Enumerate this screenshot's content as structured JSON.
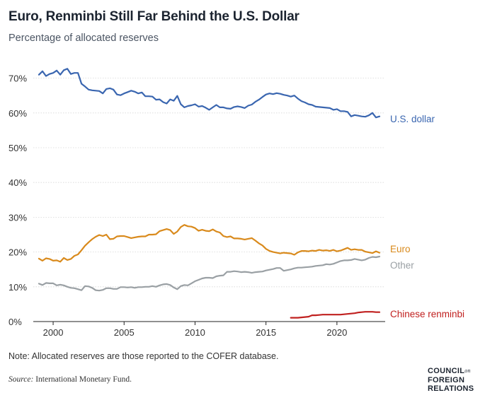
{
  "chart_data": {
    "type": "line",
    "title": "Euro, Renminbi Still Far Behind the U.S. Dollar",
    "subtitle": "Percentage of allocated reserves",
    "ylim": [
      0,
      75
    ],
    "xlim": [
      1998.6,
      2023.4
    ],
    "y_ticks": [
      0,
      10,
      20,
      30,
      40,
      50,
      60,
      70
    ],
    "y_tick_labels": [
      "0%",
      "10%",
      "20%",
      "30%",
      "40%",
      "50%",
      "60%",
      "70%"
    ],
    "x_ticks": [
      2000,
      2005,
      2010,
      2015,
      2020
    ],
    "x_tick_labels": [
      "2000",
      "2005",
      "2010",
      "2015",
      "2020"
    ],
    "grid": "horizontal",
    "legend": "direct labels at right end of lines",
    "series": [
      {
        "name": "U.S. dollar",
        "color": "#3a66b0",
        "x": [
          1999,
          1999.25,
          1999.5,
          1999.75,
          2000,
          2000.25,
          2000.5,
          2000.75,
          2001,
          2001.25,
          2001.5,
          2001.75,
          2002,
          2002.25,
          2002.5,
          2002.75,
          2003,
          2003.25,
          2003.5,
          2003.75,
          2004,
          2004.25,
          2004.5,
          2004.75,
          2005,
          2005.25,
          2005.5,
          2005.75,
          2006,
          2006.25,
          2006.5,
          2006.75,
          2007,
          2007.25,
          2007.5,
          2007.75,
          2008,
          2008.25,
          2008.5,
          2008.75,
          2009,
          2009.25,
          2009.5,
          2009.75,
          2010,
          2010.25,
          2010.5,
          2010.75,
          2011,
          2011.25,
          2011.5,
          2011.75,
          2012,
          2012.25,
          2012.5,
          2012.75,
          2013,
          2013.25,
          2013.5,
          2013.75,
          2014,
          2014.25,
          2014.5,
          2014.75,
          2015,
          2015.25,
          2015.5,
          2015.75,
          2016,
          2016.25,
          2016.5,
          2016.75,
          2017,
          2017.25,
          2017.5,
          2017.75,
          2018,
          2018.25,
          2018.5,
          2018.75,
          2019,
          2019.25,
          2019.5,
          2019.75,
          2020,
          2020.25,
          2020.5,
          2020.75,
          2021,
          2021.25,
          2021.5,
          2021.75,
          2022,
          2022.25,
          2022.5,
          2022.75,
          2023
        ],
        "values": [
          71.0,
          72.0,
          70.6,
          71.2,
          71.5,
          72.2,
          71.0,
          72.3,
          72.7,
          71.2,
          71.5,
          71.5,
          68.4,
          67.6,
          66.7,
          66.5,
          66.4,
          66.3,
          65.6,
          66.9,
          67.1,
          66.7,
          65.3,
          65.1,
          65.6,
          66.0,
          66.4,
          66.1,
          65.6,
          65.9,
          64.8,
          64.8,
          64.7,
          63.8,
          63.9,
          63.1,
          62.7,
          63.9,
          63.5,
          64.9,
          62.5,
          61.6,
          62.0,
          62.2,
          62.5,
          61.8,
          62.0,
          61.5,
          60.9,
          61.6,
          62.3,
          61.6,
          61.6,
          61.3,
          61.2,
          61.7,
          61.9,
          61.7,
          61.4,
          62.1,
          62.4,
          63.2,
          63.8,
          64.6,
          65.3,
          65.6,
          65.4,
          65.7,
          65.5,
          65.2,
          65.0,
          64.7,
          65.0,
          64.1,
          63.4,
          63.0,
          62.5,
          62.3,
          61.8,
          61.7,
          61.6,
          61.5,
          61.4,
          60.9,
          61.1,
          60.5,
          60.5,
          60.3,
          59.0,
          59.4,
          59.2,
          59.0,
          58.9,
          59.3,
          60.0,
          58.7,
          59.0
        ]
      },
      {
        "name": "Euro",
        "color": "#d98a1c",
        "x": [
          1999,
          1999.25,
          1999.5,
          1999.75,
          2000,
          2000.25,
          2000.5,
          2000.75,
          2001,
          2001.25,
          2001.5,
          2001.75,
          2002,
          2002.25,
          2002.5,
          2002.75,
          2003,
          2003.25,
          2003.5,
          2003.75,
          2004,
          2004.25,
          2004.5,
          2004.75,
          2005,
          2005.25,
          2005.5,
          2005.75,
          2006,
          2006.25,
          2006.5,
          2006.75,
          2007,
          2007.25,
          2007.5,
          2007.75,
          2008,
          2008.25,
          2008.5,
          2008.75,
          2009,
          2009.25,
          2009.5,
          2009.75,
          2010,
          2010.25,
          2010.5,
          2010.75,
          2011,
          2011.25,
          2011.5,
          2011.75,
          2012,
          2012.25,
          2012.5,
          2012.75,
          2013,
          2013.25,
          2013.5,
          2013.75,
          2014,
          2014.25,
          2014.5,
          2014.75,
          2015,
          2015.25,
          2015.5,
          2015.75,
          2016,
          2016.25,
          2016.5,
          2016.75,
          2017,
          2017.25,
          2017.5,
          2017.75,
          2018,
          2018.25,
          2018.5,
          2018.75,
          2019,
          2019.25,
          2019.5,
          2019.75,
          2020,
          2020.25,
          2020.5,
          2020.75,
          2021,
          2021.25,
          2021.5,
          2021.75,
          2022,
          2022.25,
          2022.5,
          2022.75,
          2023
        ],
        "values": [
          18.1,
          17.5,
          18.2,
          18.0,
          17.5,
          17.6,
          17.2,
          18.3,
          17.7,
          18.0,
          18.9,
          19.3,
          20.5,
          21.8,
          22.8,
          23.7,
          24.4,
          24.9,
          24.6,
          25.0,
          23.7,
          23.8,
          24.5,
          24.6,
          24.6,
          24.3,
          24.0,
          24.2,
          24.4,
          24.5,
          24.5,
          25.0,
          25.0,
          25.1,
          26.0,
          26.3,
          26.6,
          26.3,
          25.2,
          25.9,
          27.2,
          27.8,
          27.4,
          27.3,
          26.9,
          26.1,
          26.4,
          26.1,
          26.0,
          26.5,
          25.9,
          25.6,
          24.6,
          24.3,
          24.5,
          23.9,
          23.9,
          23.8,
          23.6,
          23.8,
          24.0,
          23.3,
          22.5,
          21.9,
          20.9,
          20.3,
          20.0,
          19.8,
          19.6,
          19.8,
          19.7,
          19.6,
          19.2,
          19.9,
          20.3,
          20.3,
          20.2,
          20.4,
          20.3,
          20.6,
          20.4,
          20.5,
          20.3,
          20.6,
          20.2,
          20.4,
          20.8,
          21.2,
          20.6,
          20.8,
          20.6,
          20.6,
          20.1,
          19.9,
          19.7,
          20.2,
          19.8
        ]
      },
      {
        "name": "Other",
        "color": "#9aa0a4",
        "x": [
          1999,
          1999.25,
          1999.5,
          1999.75,
          2000,
          2000.25,
          2000.5,
          2000.75,
          2001,
          2001.25,
          2001.5,
          2001.75,
          2002,
          2002.25,
          2002.5,
          2002.75,
          2003,
          2003.25,
          2003.5,
          2003.75,
          2004,
          2004.25,
          2004.5,
          2004.75,
          2005,
          2005.25,
          2005.5,
          2005.75,
          2006,
          2006.25,
          2006.5,
          2006.75,
          2007,
          2007.25,
          2007.5,
          2007.75,
          2008,
          2008.25,
          2008.5,
          2008.75,
          2009,
          2009.25,
          2009.5,
          2009.75,
          2010,
          2010.25,
          2010.5,
          2010.75,
          2011,
          2011.25,
          2011.5,
          2011.75,
          2012,
          2012.25,
          2012.5,
          2012.75,
          2013,
          2013.25,
          2013.5,
          2013.75,
          2014,
          2014.25,
          2014.5,
          2014.75,
          2015,
          2015.25,
          2015.5,
          2015.75,
          2016,
          2016.25,
          2016.5,
          2016.75,
          2017,
          2017.25,
          2017.5,
          2017.75,
          2018,
          2018.25,
          2018.5,
          2018.75,
          2019,
          2019.25,
          2019.5,
          2019.75,
          2020,
          2020.25,
          2020.5,
          2020.75,
          2021,
          2021.25,
          2021.5,
          2021.75,
          2022,
          2022.25,
          2022.5,
          2022.75,
          2023
        ],
        "values": [
          10.9,
          10.5,
          11.1,
          11.0,
          11.0,
          10.4,
          10.6,
          10.4,
          10.0,
          9.7,
          9.6,
          9.3,
          9.0,
          10.2,
          10.1,
          9.7,
          9.0,
          8.9,
          9.1,
          9.6,
          9.6,
          9.4,
          9.4,
          9.9,
          9.9,
          9.8,
          9.9,
          9.7,
          9.9,
          9.9,
          10.0,
          10.0,
          10.2,
          10.0,
          10.4,
          10.7,
          10.8,
          10.5,
          9.8,
          9.3,
          10.2,
          10.5,
          10.4,
          11.0,
          11.6,
          12.0,
          12.4,
          12.6,
          12.6,
          12.5,
          13.0,
          13.2,
          13.3,
          14.3,
          14.3,
          14.5,
          14.4,
          14.2,
          14.3,
          14.2,
          14.0,
          14.2,
          14.3,
          14.4,
          14.7,
          14.9,
          15.1,
          15.4,
          15.4,
          14.6,
          14.8,
          15.0,
          15.3,
          15.5,
          15.5,
          15.6,
          15.7,
          15.8,
          16.0,
          16.1,
          16.2,
          16.5,
          16.4,
          16.6,
          17.0,
          17.4,
          17.6,
          17.6,
          17.7,
          18.0,
          17.8,
          17.6,
          17.8,
          18.3,
          18.6,
          18.5,
          18.7
        ]
      },
      {
        "name": "Chinese renminbi",
        "color": "#c0201f",
        "x": [
          2016.75,
          2017,
          2017.25,
          2017.5,
          2017.75,
          2018,
          2018.25,
          2018.5,
          2018.75,
          2019,
          2019.25,
          2019.5,
          2019.75,
          2020,
          2020.25,
          2020.5,
          2020.75,
          2021,
          2021.25,
          2021.5,
          2021.75,
          2022,
          2022.25,
          2022.5,
          2022.75,
          2023
        ],
        "values": [
          1.1,
          1.1,
          1.1,
          1.2,
          1.3,
          1.4,
          1.8,
          1.8,
          1.9,
          2.0,
          2.0,
          2.0,
          2.0,
          2.0,
          2.0,
          2.1,
          2.2,
          2.3,
          2.4,
          2.6,
          2.7,
          2.8,
          2.8,
          2.8,
          2.7,
          2.7
        ]
      }
    ]
  },
  "footer": {
    "note": "Note: Allocated reserves are those reported to the COFER database.",
    "source_label": "Source:",
    "source_text": " International Monetary Fund.",
    "logo_line1": "COUNCIL",
    "logo_on": "on",
    "logo_line2": "FOREIGN",
    "logo_line3": "RELATIONS"
  }
}
